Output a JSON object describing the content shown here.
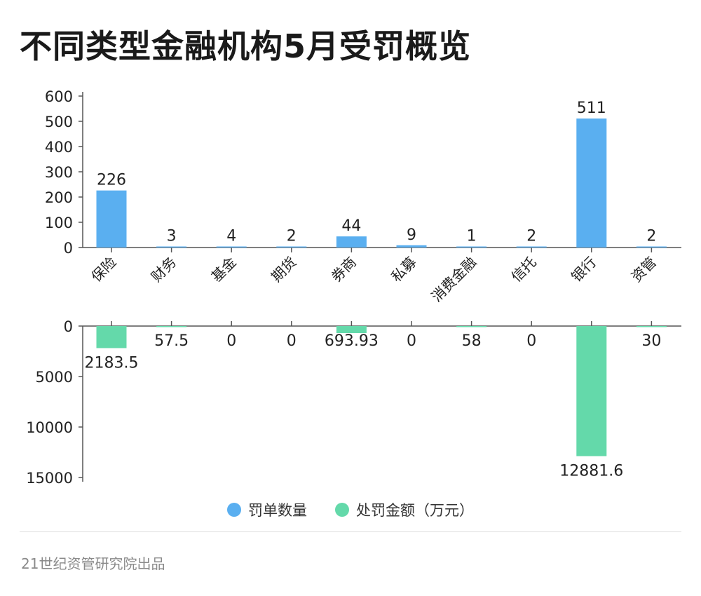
{
  "title": "不同类型金融机构5月受罚概览",
  "footer": "21世纪资管研究院出品",
  "legend": [
    {
      "label": "罚单数量",
      "color": "#5aaff0"
    },
    {
      "label": "处罚金额（万元）",
      "color": "#64d9aa"
    }
  ],
  "chart_data": {
    "type": "bar",
    "categories": [
      "保险",
      "财务",
      "基金",
      "期货",
      "券商",
      "私募",
      "消费金融",
      "信托",
      "银行",
      "资管"
    ],
    "series": [
      {
        "name": "罚单数量",
        "color": "#5aaff0",
        "values": [
          226,
          3,
          4,
          2,
          44,
          9,
          1,
          2,
          511,
          2
        ],
        "labels": [
          "226",
          "3",
          "4",
          "2",
          "44",
          "9",
          "1",
          "2",
          "511",
          "2"
        ]
      },
      {
        "name": "处罚金额（万元）",
        "color": "#64d9aa",
        "values": [
          2183.5,
          57.5,
          0,
          0,
          693.93,
          0,
          58,
          0,
          12881.6,
          30
        ],
        "labels": [
          "2183.5",
          "57.5",
          "0",
          "0",
          "693.93",
          "0",
          "58",
          "0",
          "12881.6",
          "30"
        ]
      }
    ],
    "top_axis": {
      "ylim": [
        0,
        600
      ],
      "ticks": [
        "0",
        "100",
        "200",
        "300",
        "400",
        "500",
        "600"
      ]
    },
    "bottom_axis": {
      "ylim": [
        0,
        15000
      ],
      "ticks": [
        "0",
        "5000",
        "10000",
        "15000"
      ],
      "inverted": true
    },
    "legend_position": "bottom-center"
  }
}
